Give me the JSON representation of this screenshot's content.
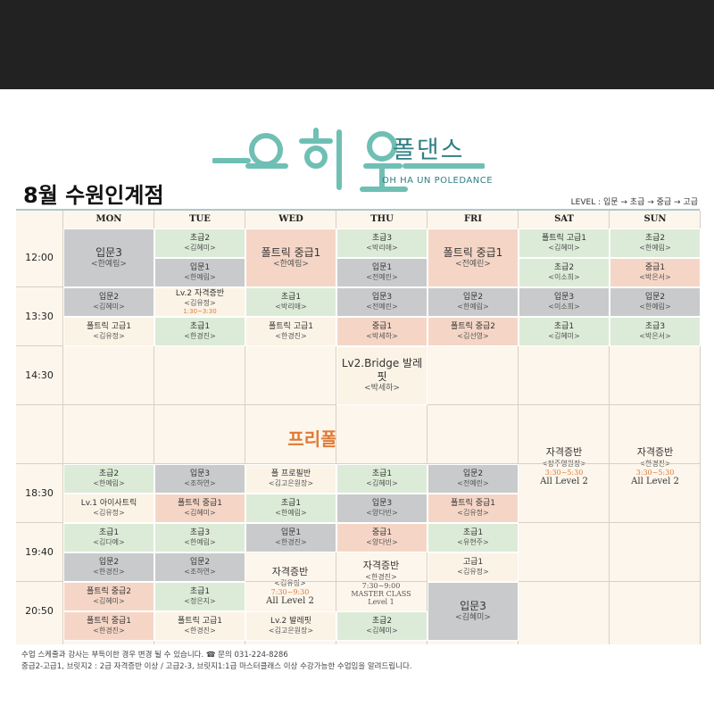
{
  "header": {
    "logo_text": "오하운",
    "brand_kr": "폴댄스",
    "brand_en": "OH HA UN POLEDANCE",
    "branch_title": "8월 수원인계점",
    "level_legend": "LEVEL : 입문 → 초급 → 중급 → 고급",
    "brand_color": "#2f7f84"
  },
  "days": [
    "MON",
    "TUE",
    "WED",
    "THU",
    "FRI",
    "SAT",
    "SUN"
  ],
  "times": [
    "12:00",
    "13:30",
    "14:30",
    "18:30",
    "19:40",
    "20:50"
  ],
  "colors": {
    "green": "#dcebd7",
    "gray": "#c9cacb",
    "peach": "#f5d6c6",
    "accent": "#e07a34"
  },
  "free_pole": "프리폴",
  "sessions": [
    {
      "day": 0,
      "row": 0,
      "span": 2,
      "c": "gray",
      "big": true,
      "name": "입문3",
      "teacher": "<한예림>"
    },
    {
      "day": 1,
      "row": 0,
      "c": "green",
      "name": "초급2",
      "teacher": "<김혜미>"
    },
    {
      "day": 1,
      "row": 1,
      "c": "gray",
      "name": "입문1",
      "teacher": "<한예림>"
    },
    {
      "day": 2,
      "row": 0,
      "span": 2,
      "c": "peach",
      "big": true,
      "name": "폴트릭 중급1",
      "teacher": "<한예림>"
    },
    {
      "day": 3,
      "row": 0,
      "c": "green",
      "name": "초급3",
      "teacher": "<박리애>"
    },
    {
      "day": 3,
      "row": 1,
      "c": "gray",
      "name": "입문1",
      "teacher": "<전예린>"
    },
    {
      "day": 4,
      "row": 0,
      "span": 2,
      "c": "peach",
      "big": true,
      "name": "폴트릭 중급1",
      "teacher": "<전예린>"
    },
    {
      "day": 5,
      "row": 0,
      "c": "green",
      "name": "폴트릭 고급1",
      "teacher": "<김혜미>"
    },
    {
      "day": 5,
      "row": 1,
      "c": "green",
      "name": "초급2",
      "teacher": "<이소희>"
    },
    {
      "day": 6,
      "row": 0,
      "c": "green",
      "name": "초급2",
      "teacher": "<한예림>"
    },
    {
      "day": 6,
      "row": 1,
      "c": "peach",
      "name": "중급1",
      "teacher": "<박은서>"
    },
    {
      "day": 0,
      "row": 2,
      "c": "gray",
      "name": "입문2",
      "teacher": "<김혜미>"
    },
    {
      "day": 0,
      "row": 3,
      "c": "cream",
      "name": "폴트릭 고급1",
      "teacher": "<김유정>"
    },
    {
      "day": 1,
      "row": 2,
      "c": "cream",
      "name": "Lv.2 자격증반",
      "teacher": "<김유정>",
      "sub": "1:30~3:30"
    },
    {
      "day": 1,
      "row": 3,
      "c": "green",
      "name": "초급1",
      "teacher": "<한경진>"
    },
    {
      "day": 2,
      "row": 2,
      "c": "green",
      "name": "초급1",
      "teacher": "<박리애>"
    },
    {
      "day": 2,
      "row": 3,
      "c": "cream",
      "name": "폴트릭 고급1",
      "teacher": "<한경진>"
    },
    {
      "day": 3,
      "row": 2,
      "c": "gray",
      "name": "입문3",
      "teacher": "<전예린>"
    },
    {
      "day": 3,
      "row": 3,
      "c": "peach",
      "name": "중급1",
      "teacher": "<박세하>"
    },
    {
      "day": 4,
      "row": 2,
      "c": "gray",
      "name": "입문2",
      "teacher": "<한예림>"
    },
    {
      "day": 4,
      "row": 3,
      "c": "peach",
      "name": "폴트릭 중급2",
      "teacher": "<김선영>"
    },
    {
      "day": 5,
      "row": 2,
      "c": "gray",
      "name": "입문3",
      "teacher": "<이소희>"
    },
    {
      "day": 5,
      "row": 3,
      "c": "green",
      "name": "초급1",
      "teacher": "<김혜미>"
    },
    {
      "day": 6,
      "row": 2,
      "c": "gray",
      "name": "입문2",
      "teacher": "<한예림>"
    },
    {
      "day": 6,
      "row": 3,
      "c": "green",
      "name": "초급3",
      "teacher": "<박은서>"
    },
    {
      "day": 3,
      "row": 4,
      "span": 2,
      "c": "cream",
      "big": true,
      "name": "Lv2.Bridge 발레핏",
      "teacher": "<박세하>"
    },
    {
      "day": 0,
      "row": 8,
      "c": "green",
      "name": "초급2",
      "teacher": "<한예림>"
    },
    {
      "day": 0,
      "row": 9,
      "c": "cream",
      "name": "Lv.1 아이사트릭",
      "teacher": "<김유정>"
    },
    {
      "day": 1,
      "row": 8,
      "c": "gray",
      "name": "입문3",
      "teacher": "<조하연>"
    },
    {
      "day": 1,
      "row": 9,
      "c": "peach",
      "name": "폴트릭 중급1",
      "teacher": "<김혜미>"
    },
    {
      "day": 2,
      "row": 8,
      "c": "cream",
      "name": "폴 프로필반",
      "teacher": "<김고은원장>"
    },
    {
      "day": 2,
      "row": 9,
      "c": "green",
      "name": "초급1",
      "teacher": "<한예림>"
    },
    {
      "day": 3,
      "row": 8,
      "c": "green",
      "name": "초급1",
      "teacher": "<김혜미>"
    },
    {
      "day": 3,
      "row": 9,
      "c": "gray",
      "name": "입문3",
      "teacher": "<양다빈>"
    },
    {
      "day": 4,
      "row": 8,
      "c": "gray",
      "name": "입문2",
      "teacher": "<전예린>"
    },
    {
      "day": 4,
      "row": 9,
      "c": "peach",
      "name": "폴트릭 중급1",
      "teacher": "<김유정>"
    },
    {
      "day": 0,
      "row": 10,
      "c": "green",
      "name": "초급1",
      "teacher": "<김다예>"
    },
    {
      "day": 0,
      "row": 11,
      "c": "gray",
      "name": "입문2",
      "teacher": "<한경진>"
    },
    {
      "day": 1,
      "row": 10,
      "c": "green",
      "name": "초급3",
      "teacher": "<한예림>"
    },
    {
      "day": 1,
      "row": 11,
      "c": "gray",
      "name": "입문2",
      "teacher": "<조하연>"
    },
    {
      "day": 2,
      "row": 10,
      "c": "gray",
      "name": "입문1",
      "teacher": "<한경진>"
    },
    {
      "day": 3,
      "row": 10,
      "c": "peach",
      "name": "중급1",
      "teacher": "<양다빈>"
    },
    {
      "day": 4,
      "row": 10,
      "c": "green",
      "name": "초급1",
      "teacher": "<유현주>"
    },
    {
      "day": 4,
      "row": 11,
      "c": "cream",
      "name": "고급1",
      "teacher": "<김유정>"
    },
    {
      "day": 0,
      "row": 12,
      "c": "peach",
      "name": "폴트릭 중급2",
      "teacher": "<김혜미>"
    },
    {
      "day": 0,
      "row": 13,
      "c": "peach",
      "name": "폴트릭 중급1",
      "teacher": "<한경진>"
    },
    {
      "day": 1,
      "row": 12,
      "c": "green",
      "name": "초급1",
      "teacher": "<정은지>"
    },
    {
      "day": 1,
      "row": 13,
      "c": "cream",
      "name": "폴트릭 고급1",
      "teacher": "<한경진>"
    },
    {
      "day": 2,
      "row": 13,
      "c": "cream",
      "name": "Lv.2 발레핏",
      "teacher": "<김고은원장>"
    },
    {
      "day": 3,
      "row": 13,
      "c": "green",
      "name": "초급2",
      "teacher": "<김혜미>"
    },
    {
      "day": 4,
      "row": 12,
      "span": 2,
      "c": "gray",
      "big": true,
      "name": "입문3",
      "teacher": "<김혜미>"
    }
  ],
  "special": {
    "wed_cert": {
      "name": "자격증반",
      "teacher": "<김유정>",
      "time": "7:30~9:30",
      "level": "All Level 2"
    },
    "thu_cert": {
      "name": "자격증반",
      "teacher": "<한경진>",
      "time": "7:30~9:00",
      "level_a": "MASTER CLASS",
      "level_b": "Level 1"
    },
    "sat_cert": {
      "name": "자격증반",
      "teacher": "<장주영원장>",
      "time": "3:30~5:30",
      "level": "All Level 2"
    },
    "sun_cert": {
      "name": "자격증반",
      "teacher": "<한경진>",
      "time": "3:30~5:30",
      "level": "All Level 2"
    }
  },
  "footer": {
    "line1": "수업 스케줄과 강사는 부득이한 경우 변경 될 수 있습니다. ☎ 문의 031-224-8286",
    "line2": "중급2-고급1, 브릿지2 : 2급 자격증반 이상 / 고급2-3, 브릿지1:1급 마스터클래스 이상 수강가능한 수업임을 알려드립니다."
  }
}
